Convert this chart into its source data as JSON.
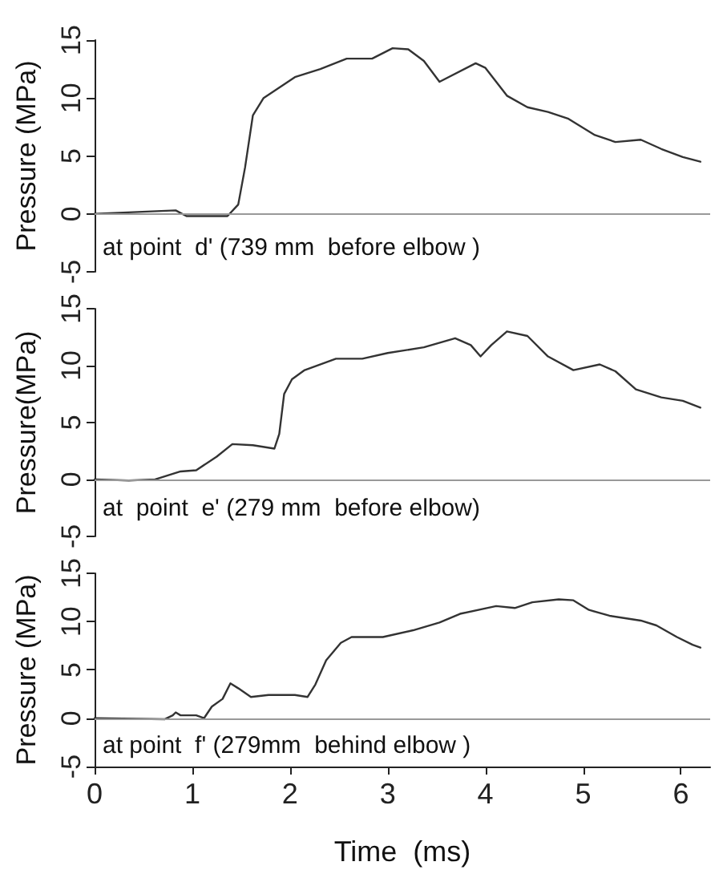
{
  "chart_data": [
    {
      "type": "line",
      "ylabel": "Pressure (MPa)",
      "annotations": [
        "at point  d' (739 mm  before elbow )"
      ],
      "xlim": [
        0,
        6.3
      ],
      "ylim": [
        -5,
        15
      ],
      "yticks": [
        -5,
        0,
        5,
        10,
        15
      ],
      "tick_labels": "y",
      "grid": false,
      "ref_lines": [
        {
          "axis": "y",
          "value": 0,
          "color": "#999999"
        }
      ],
      "series": [
        {
          "color": "#333333",
          "x": [
            0,
            0.83,
            0.94,
            1.36,
            1.47,
            1.54,
            1.62,
            1.73,
            2.05,
            2.31,
            2.58,
            2.84,
            3.05,
            3.21,
            3.37,
            3.53,
            3.9,
            4.0,
            4.22,
            4.43,
            4.64,
            4.85,
            5.12,
            5.33,
            5.59,
            5.8,
            6.02,
            6.2
          ],
          "values": [
            0,
            0.3,
            -0.2,
            -0.2,
            0.8,
            4,
            8.5,
            10,
            11.8,
            12.5,
            13.4,
            13.4,
            14.3,
            14.2,
            13.2,
            11.4,
            13,
            12.6,
            10.2,
            9.2,
            8.8,
            8.2,
            6.8,
            6.2,
            6.4,
            5.6,
            4.9,
            4.5
          ]
        }
      ]
    },
    {
      "type": "line",
      "ylabel": "Pressure(MPa)",
      "annotations": [
        "at  point  e' (279 mm  before elbow)"
      ],
      "xlim": [
        0,
        6.3
      ],
      "ylim": [
        -5,
        15
      ],
      "yticks": [
        -5,
        0,
        5,
        10,
        15
      ],
      "tick_labels": "y",
      "grid": false,
      "ref_lines": [
        {
          "axis": "y",
          "value": 0,
          "color": "#999999"
        }
      ],
      "series": [
        {
          "color": "#333333",
          "x": [
            0,
            0.35,
            0.62,
            0.88,
            1.04,
            1.25,
            1.41,
            1.62,
            1.84,
            1.89,
            1.94,
            2.02,
            2.15,
            2.47,
            2.74,
            3.0,
            3.37,
            3.69,
            3.85,
            3.95,
            4.06,
            4.22,
            4.43,
            4.64,
            4.9,
            5.17,
            5.33,
            5.54,
            5.8,
            6.02,
            6.2
          ],
          "values": [
            0,
            -0.1,
            0,
            0.7,
            0.8,
            2.0,
            3.1,
            3.0,
            2.7,
            4,
            7.5,
            8.8,
            9.6,
            10.6,
            10.6,
            11.1,
            11.6,
            12.4,
            11.8,
            10.8,
            11.8,
            13.0,
            12.6,
            10.8,
            9.6,
            10.1,
            9.5,
            7.9,
            7.2,
            6.9,
            6.3
          ]
        }
      ]
    },
    {
      "type": "line",
      "ylabel": "Pressure (MPa)",
      "xlabel": "Time  (ms)",
      "annotations": [
        "at point  f' (279mm  behind elbow )"
      ],
      "xlim": [
        0,
        6.3
      ],
      "xticks": [
        0,
        1,
        2,
        3,
        4,
        5,
        6
      ],
      "ylim": [
        -5,
        15
      ],
      "yticks": [
        -5,
        0,
        5,
        10,
        15
      ],
      "grid": false,
      "ref_lines": [
        {
          "axis": "y",
          "value": 0,
          "color": "#999999"
        }
      ],
      "series": [
        {
          "color": "#333333",
          "x": [
            0,
            0.72,
            0.8,
            0.83,
            0.88,
            1.04,
            1.12,
            1.2,
            1.31,
            1.39,
            1.47,
            1.6,
            1.78,
            2.05,
            2.18,
            2.26,
            2.37,
            2.52,
            2.63,
            2.95,
            3.26,
            3.53,
            3.74,
            4.11,
            4.3,
            4.48,
            4.75,
            4.9,
            5.06,
            5.27,
            5.59,
            5.75,
            5.96,
            6.12,
            6.2
          ],
          "values": [
            0,
            -0.1,
            0.3,
            0.6,
            0.3,
            0.3,
            0,
            1.2,
            2,
            3.6,
            3.1,
            2.2,
            2.4,
            2.4,
            2.2,
            3.5,
            6.0,
            7.8,
            8.4,
            8.4,
            9.1,
            9.9,
            10.8,
            11.6,
            11.4,
            12.0,
            12.3,
            12.2,
            11.2,
            10.6,
            10.1,
            9.6,
            8.4,
            7.6,
            7.3
          ]
        }
      ]
    }
  ]
}
